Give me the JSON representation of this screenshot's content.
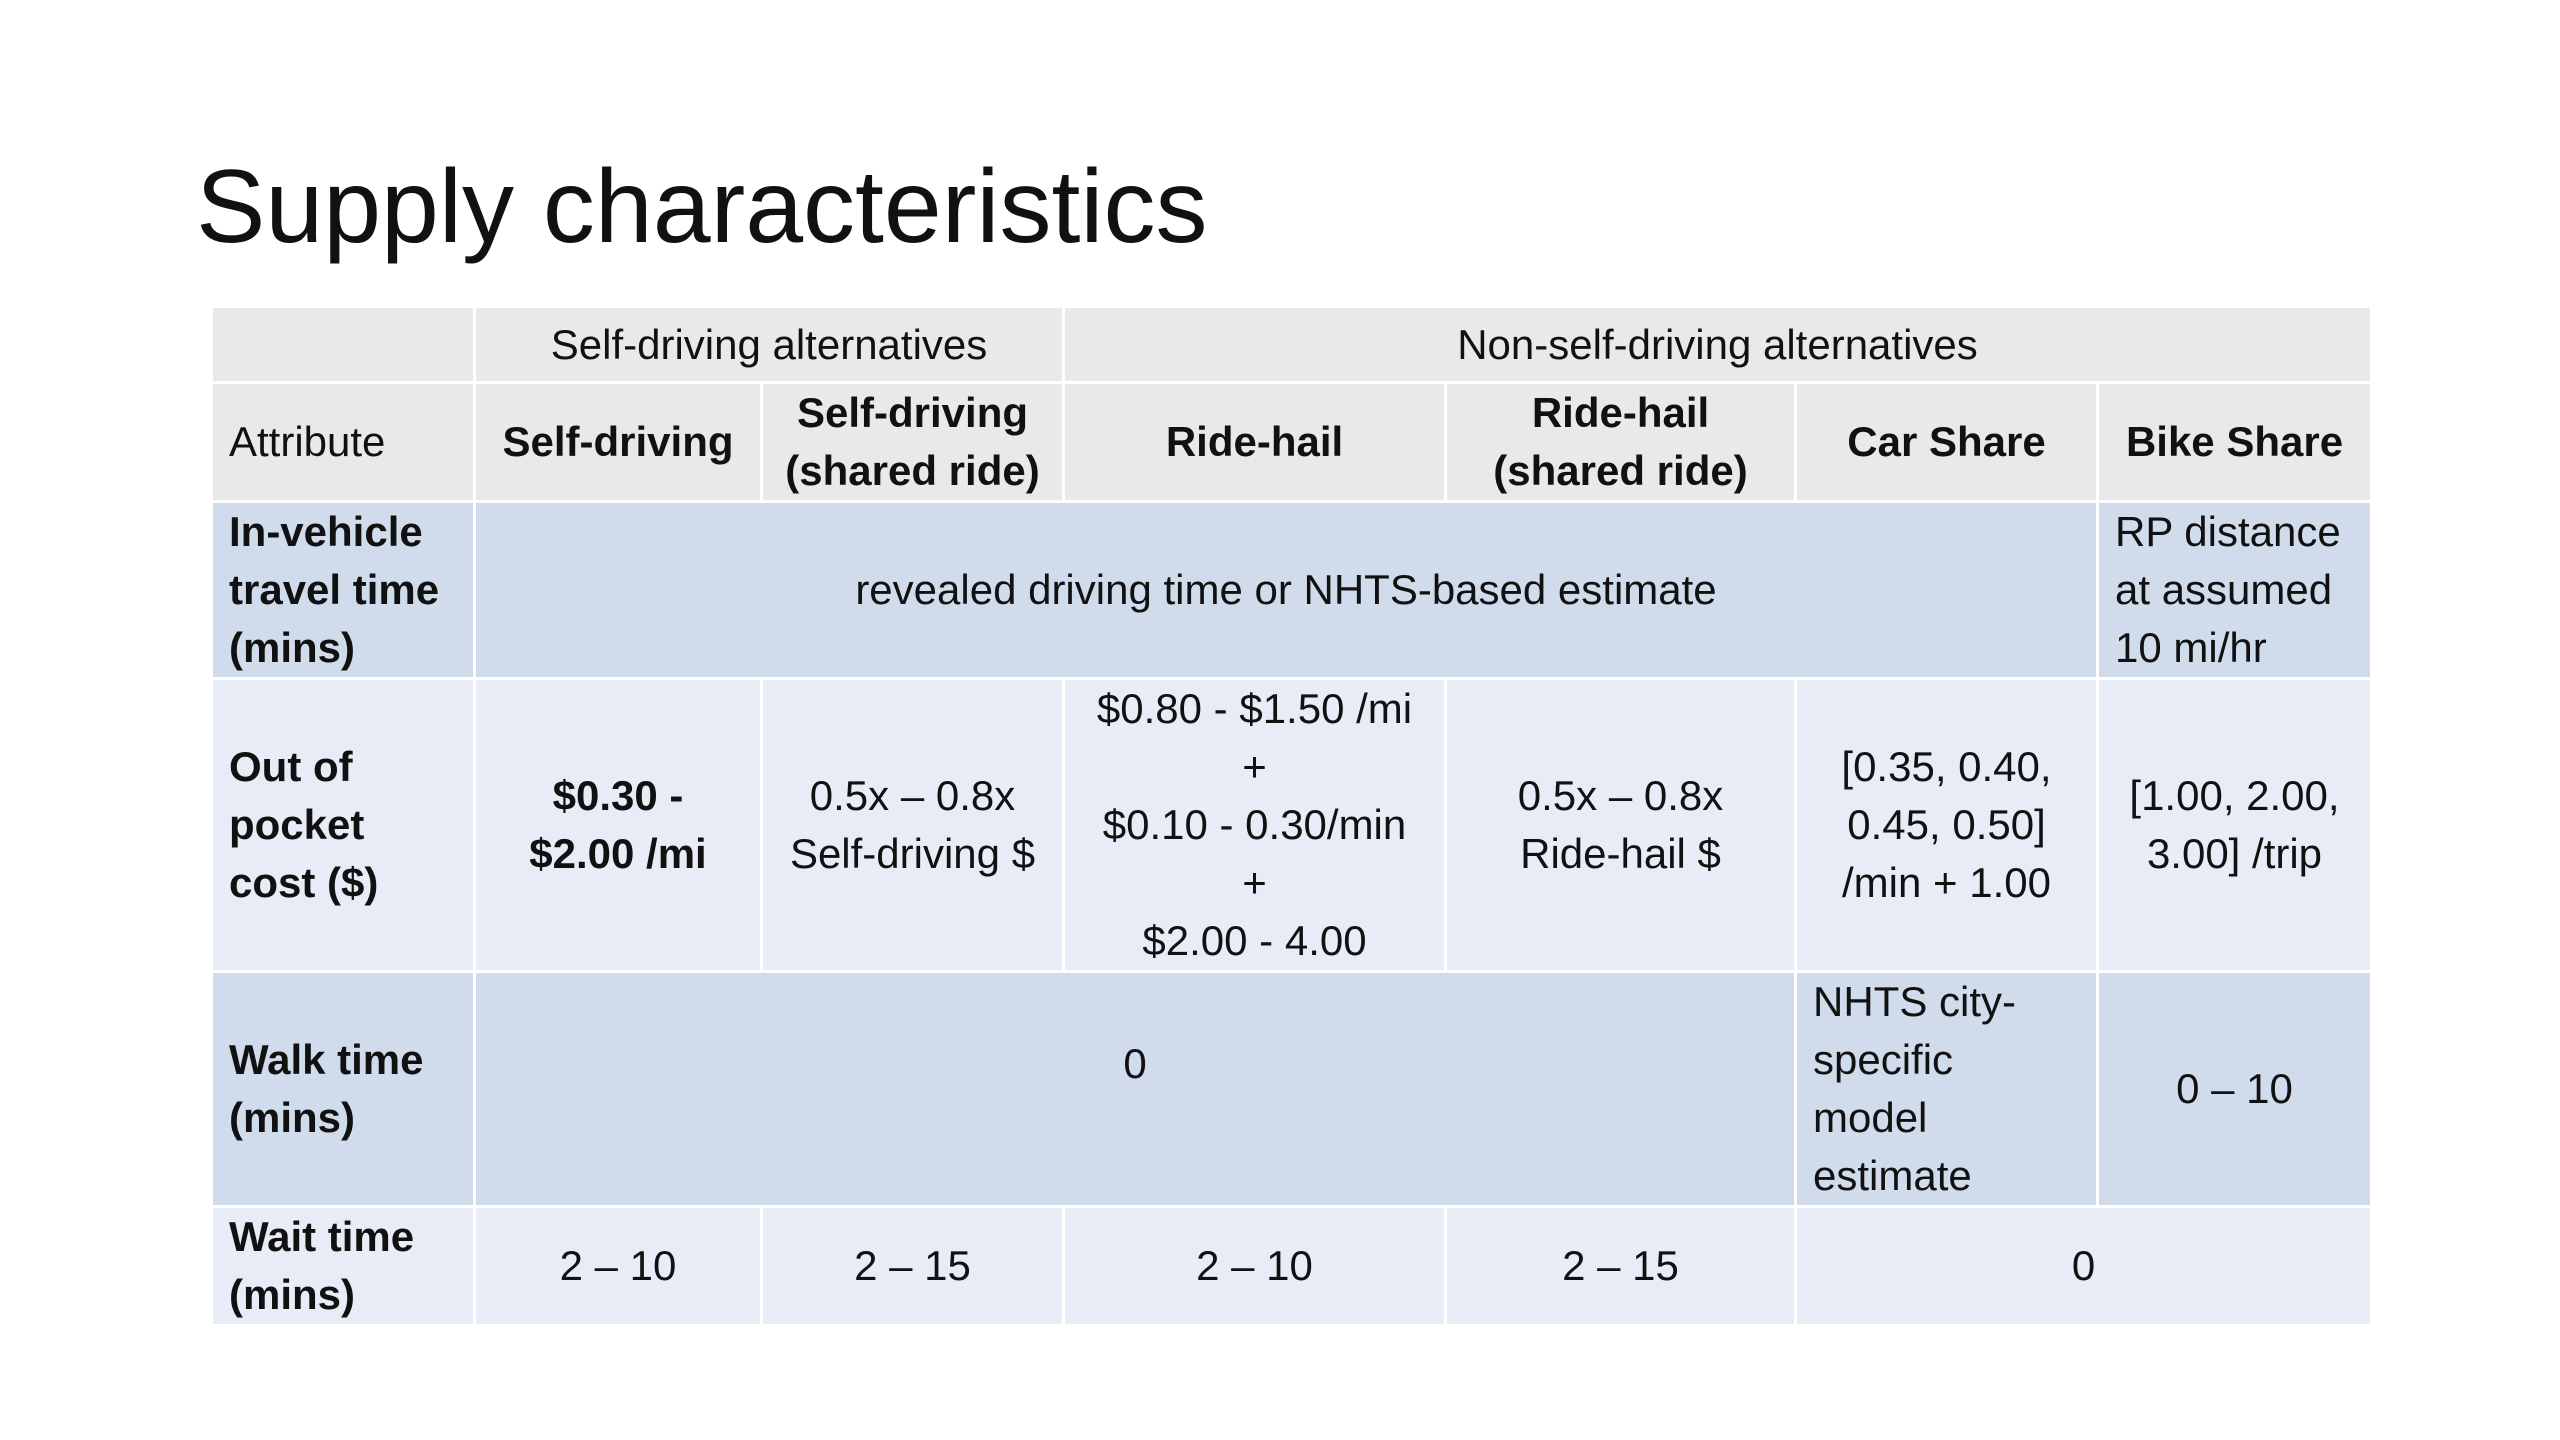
{
  "slide": {
    "title": "Supply characteristics"
  },
  "table": {
    "group_header": {
      "blank": "",
      "self_driving_group": "Self-driving alternatives",
      "non_self_driving_group": "Non-self-driving alternatives"
    },
    "column_header": {
      "attribute": "Attribute",
      "self_driving": "Self-driving",
      "self_driving_shared_line1": "Self-driving",
      "self_driving_shared_line2": "(shared ride)",
      "ride_hail": "Ride-hail",
      "ride_hail_shared_line1": "Ride-hail",
      "ride_hail_shared_line2": "(shared ride)",
      "car_share": "Car Share",
      "bike_share": "Bike Share"
    },
    "rows": {
      "in_vehicle": {
        "label_line1": "In-vehicle",
        "label_line2": "travel time",
        "label_line3": "(mins)",
        "merged_value": "revealed driving time or NHTS-based estimate",
        "bike_line1": "RP distance",
        "bike_line2": "at assumed",
        "bike_line3": "10 mi/hr"
      },
      "cost": {
        "label_line1": "Out of",
        "label_line2": "pocket",
        "label_line3": "cost ($)",
        "self_driving_line1": "$0.30 -",
        "self_driving_line2": "$2.00 /mi",
        "self_driving_shared_line1": "0.5x – 0.8x",
        "self_driving_shared_line2": "Self-driving $",
        "ride_hail_line1": "$0.80 - $1.50 /mi",
        "ride_hail_line2": "+",
        "ride_hail_line3": "$0.10 - 0.30/min",
        "ride_hail_line4": "+",
        "ride_hail_line5": "$2.00 - 4.00",
        "ride_hail_shared_line1": "0.5x – 0.8x",
        "ride_hail_shared_line2": "Ride-hail $",
        "car_share_line1": "[0.35, 0.40,",
        "car_share_line2": "0.45, 0.50]",
        "car_share_line3": "/min + 1.00",
        "bike_share_line1": "[1.00, 2.00,",
        "bike_share_line2": "3.00] /trip"
      },
      "walk": {
        "label_line1": "Walk time",
        "label_line2": "(mins)",
        "merged_value": "0",
        "car_share_line1": "NHTS city-",
        "car_share_line2": "specific",
        "car_share_line3": "model",
        "car_share_line4": "estimate",
        "bike_share": "0 – 10"
      },
      "wait": {
        "label_line1": "Wait time",
        "label_line2": "(mins)",
        "self_driving": "2 – 10",
        "self_driving_shared": "2 – 15",
        "ride_hail": "2 – 10",
        "ride_hail_shared": "2 – 15",
        "car_bike_merged": "0"
      }
    }
  }
}
